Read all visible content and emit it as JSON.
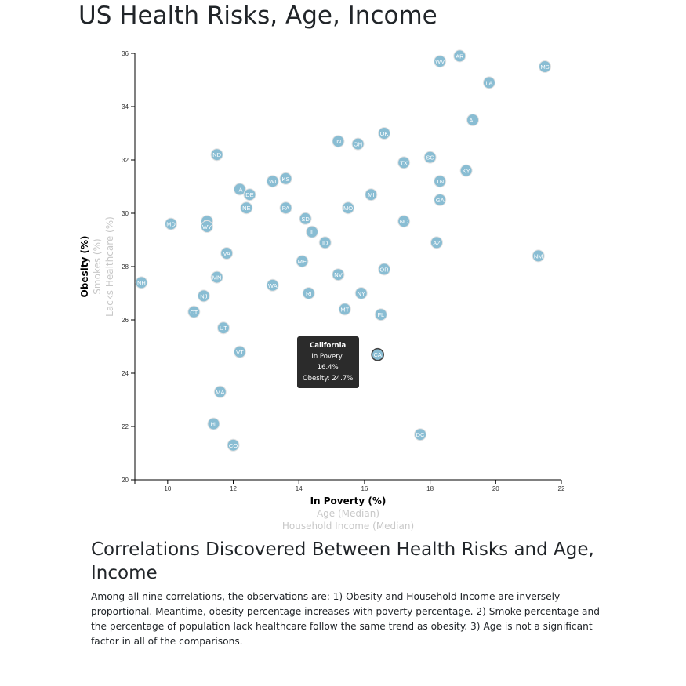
{
  "page": {
    "title": "US Health Risks, Age, Income",
    "section_heading": "Correlations Discovered Between Health Risks and Age, Income",
    "section_text": "Among all nine correlations, the observations are: 1) Obesity and Household Income are inversely proportional. Meantime, obesity percentage increases with poverty percentage. 2) Smoke percentage and the percentage of population lack healthcare follow the same trend as obesity. 3) Age is not a significant factor in all of the comparisons."
  },
  "axes": {
    "x_labels": [
      {
        "text": "In Poverty (%)",
        "active": true
      },
      {
        "text": "Age (Median)",
        "active": false
      },
      {
        "text": "Household Income (Median)",
        "active": false
      }
    ],
    "y_labels": [
      {
        "text": "Obesity (%)",
        "active": true
      },
      {
        "text": "Smokes (%)",
        "active": false
      },
      {
        "text": "Lacks Healthcare (%)",
        "active": false
      }
    ]
  },
  "tooltip": {
    "state": "California",
    "line1": "In Povery: 16.4%",
    "line2": "Obesity: 24.7%"
  },
  "colors": {
    "marker": "#89bdd3",
    "marker_text": "#ffffff",
    "tooltip_bg": "#2b2b2b"
  },
  "chart_data": {
    "type": "scatter",
    "xlabel": "In Poverty (%)",
    "ylabel": "Obesity (%)",
    "xlim": [
      9,
      22
    ],
    "ylim": [
      20,
      36
    ],
    "x_ticks": [
      10,
      12,
      14,
      16,
      18,
      20,
      22
    ],
    "y_ticks": [
      20,
      22,
      24,
      26,
      28,
      30,
      32,
      34,
      36
    ],
    "highlighted": "CA",
    "points": [
      {
        "abbr": "AR",
        "x": 18.9,
        "y": 35.9
      },
      {
        "abbr": "WV",
        "x": 18.3,
        "y": 35.7
      },
      {
        "abbr": "MS",
        "x": 21.5,
        "y": 35.5
      },
      {
        "abbr": "LA",
        "x": 19.8,
        "y": 34.9
      },
      {
        "abbr": "AL",
        "x": 19.3,
        "y": 33.5
      },
      {
        "abbr": "OK",
        "x": 16.6,
        "y": 33.0
      },
      {
        "abbr": "IN",
        "x": 15.2,
        "y": 32.7
      },
      {
        "abbr": "OH",
        "x": 15.8,
        "y": 32.6
      },
      {
        "abbr": "ND",
        "x": 11.5,
        "y": 32.2
      },
      {
        "abbr": "SC",
        "x": 18.0,
        "y": 32.1
      },
      {
        "abbr": "TX",
        "x": 17.2,
        "y": 31.9
      },
      {
        "abbr": "KY",
        "x": 19.1,
        "y": 31.6
      },
      {
        "abbr": "KS",
        "x": 13.6,
        "y": 31.3
      },
      {
        "abbr": "WI",
        "x": 13.2,
        "y": 31.2
      },
      {
        "abbr": "TN",
        "x": 18.3,
        "y": 31.2
      },
      {
        "abbr": "IA",
        "x": 12.2,
        "y": 30.9
      },
      {
        "abbr": "DE",
        "x": 12.5,
        "y": 30.7
      },
      {
        "abbr": "MI",
        "x": 16.2,
        "y": 30.7
      },
      {
        "abbr": "GA",
        "x": 18.3,
        "y": 30.5
      },
      {
        "abbr": "NE",
        "x": 12.4,
        "y": 30.2
      },
      {
        "abbr": "PA",
        "x": 13.6,
        "y": 30.2
      },
      {
        "abbr": "MO",
        "x": 15.5,
        "y": 30.2
      },
      {
        "abbr": "SD",
        "x": 14.2,
        "y": 29.8
      },
      {
        "abbr": "AK",
        "x": 11.2,
        "y": 29.7
      },
      {
        "abbr": "NC",
        "x": 17.2,
        "y": 29.7
      },
      {
        "abbr": "MD",
        "x": 10.1,
        "y": 29.6
      },
      {
        "abbr": "WY",
        "x": 11.2,
        "y": 29.5
      },
      {
        "abbr": "IL",
        "x": 14.4,
        "y": 29.3
      },
      {
        "abbr": "ID",
        "x": 14.8,
        "y": 28.9
      },
      {
        "abbr": "AZ",
        "x": 18.2,
        "y": 28.9
      },
      {
        "abbr": "VA",
        "x": 11.8,
        "y": 28.5
      },
      {
        "abbr": "NM",
        "x": 21.3,
        "y": 28.4
      },
      {
        "abbr": "ME",
        "x": 14.1,
        "y": 28.2
      },
      {
        "abbr": "OR",
        "x": 16.6,
        "y": 27.9
      },
      {
        "abbr": "NV",
        "x": 15.2,
        "y": 27.7
      },
      {
        "abbr": "MN",
        "x": 11.5,
        "y": 27.6
      },
      {
        "abbr": "NH",
        "x": 9.2,
        "y": 27.4
      },
      {
        "abbr": "WA",
        "x": 13.2,
        "y": 27.3
      },
      {
        "abbr": "RI",
        "x": 14.3,
        "y": 27.0
      },
      {
        "abbr": "NY",
        "x": 15.9,
        "y": 27.0
      },
      {
        "abbr": "NJ",
        "x": 11.1,
        "y": 26.9
      },
      {
        "abbr": "MT",
        "x": 15.4,
        "y": 26.4
      },
      {
        "abbr": "CT",
        "x": 10.8,
        "y": 26.3
      },
      {
        "abbr": "FL",
        "x": 16.5,
        "y": 26.2
      },
      {
        "abbr": "UT",
        "x": 11.7,
        "y": 25.7
      },
      {
        "abbr": "VT",
        "x": 12.2,
        "y": 24.8
      },
      {
        "abbr": "CA",
        "x": 16.4,
        "y": 24.7
      },
      {
        "abbr": "MA",
        "x": 11.6,
        "y": 23.3
      },
      {
        "abbr": "HI",
        "x": 11.4,
        "y": 22.1
      },
      {
        "abbr": "DC",
        "x": 17.7,
        "y": 21.7
      },
      {
        "abbr": "CO",
        "x": 12.0,
        "y": 21.3
      }
    ]
  }
}
